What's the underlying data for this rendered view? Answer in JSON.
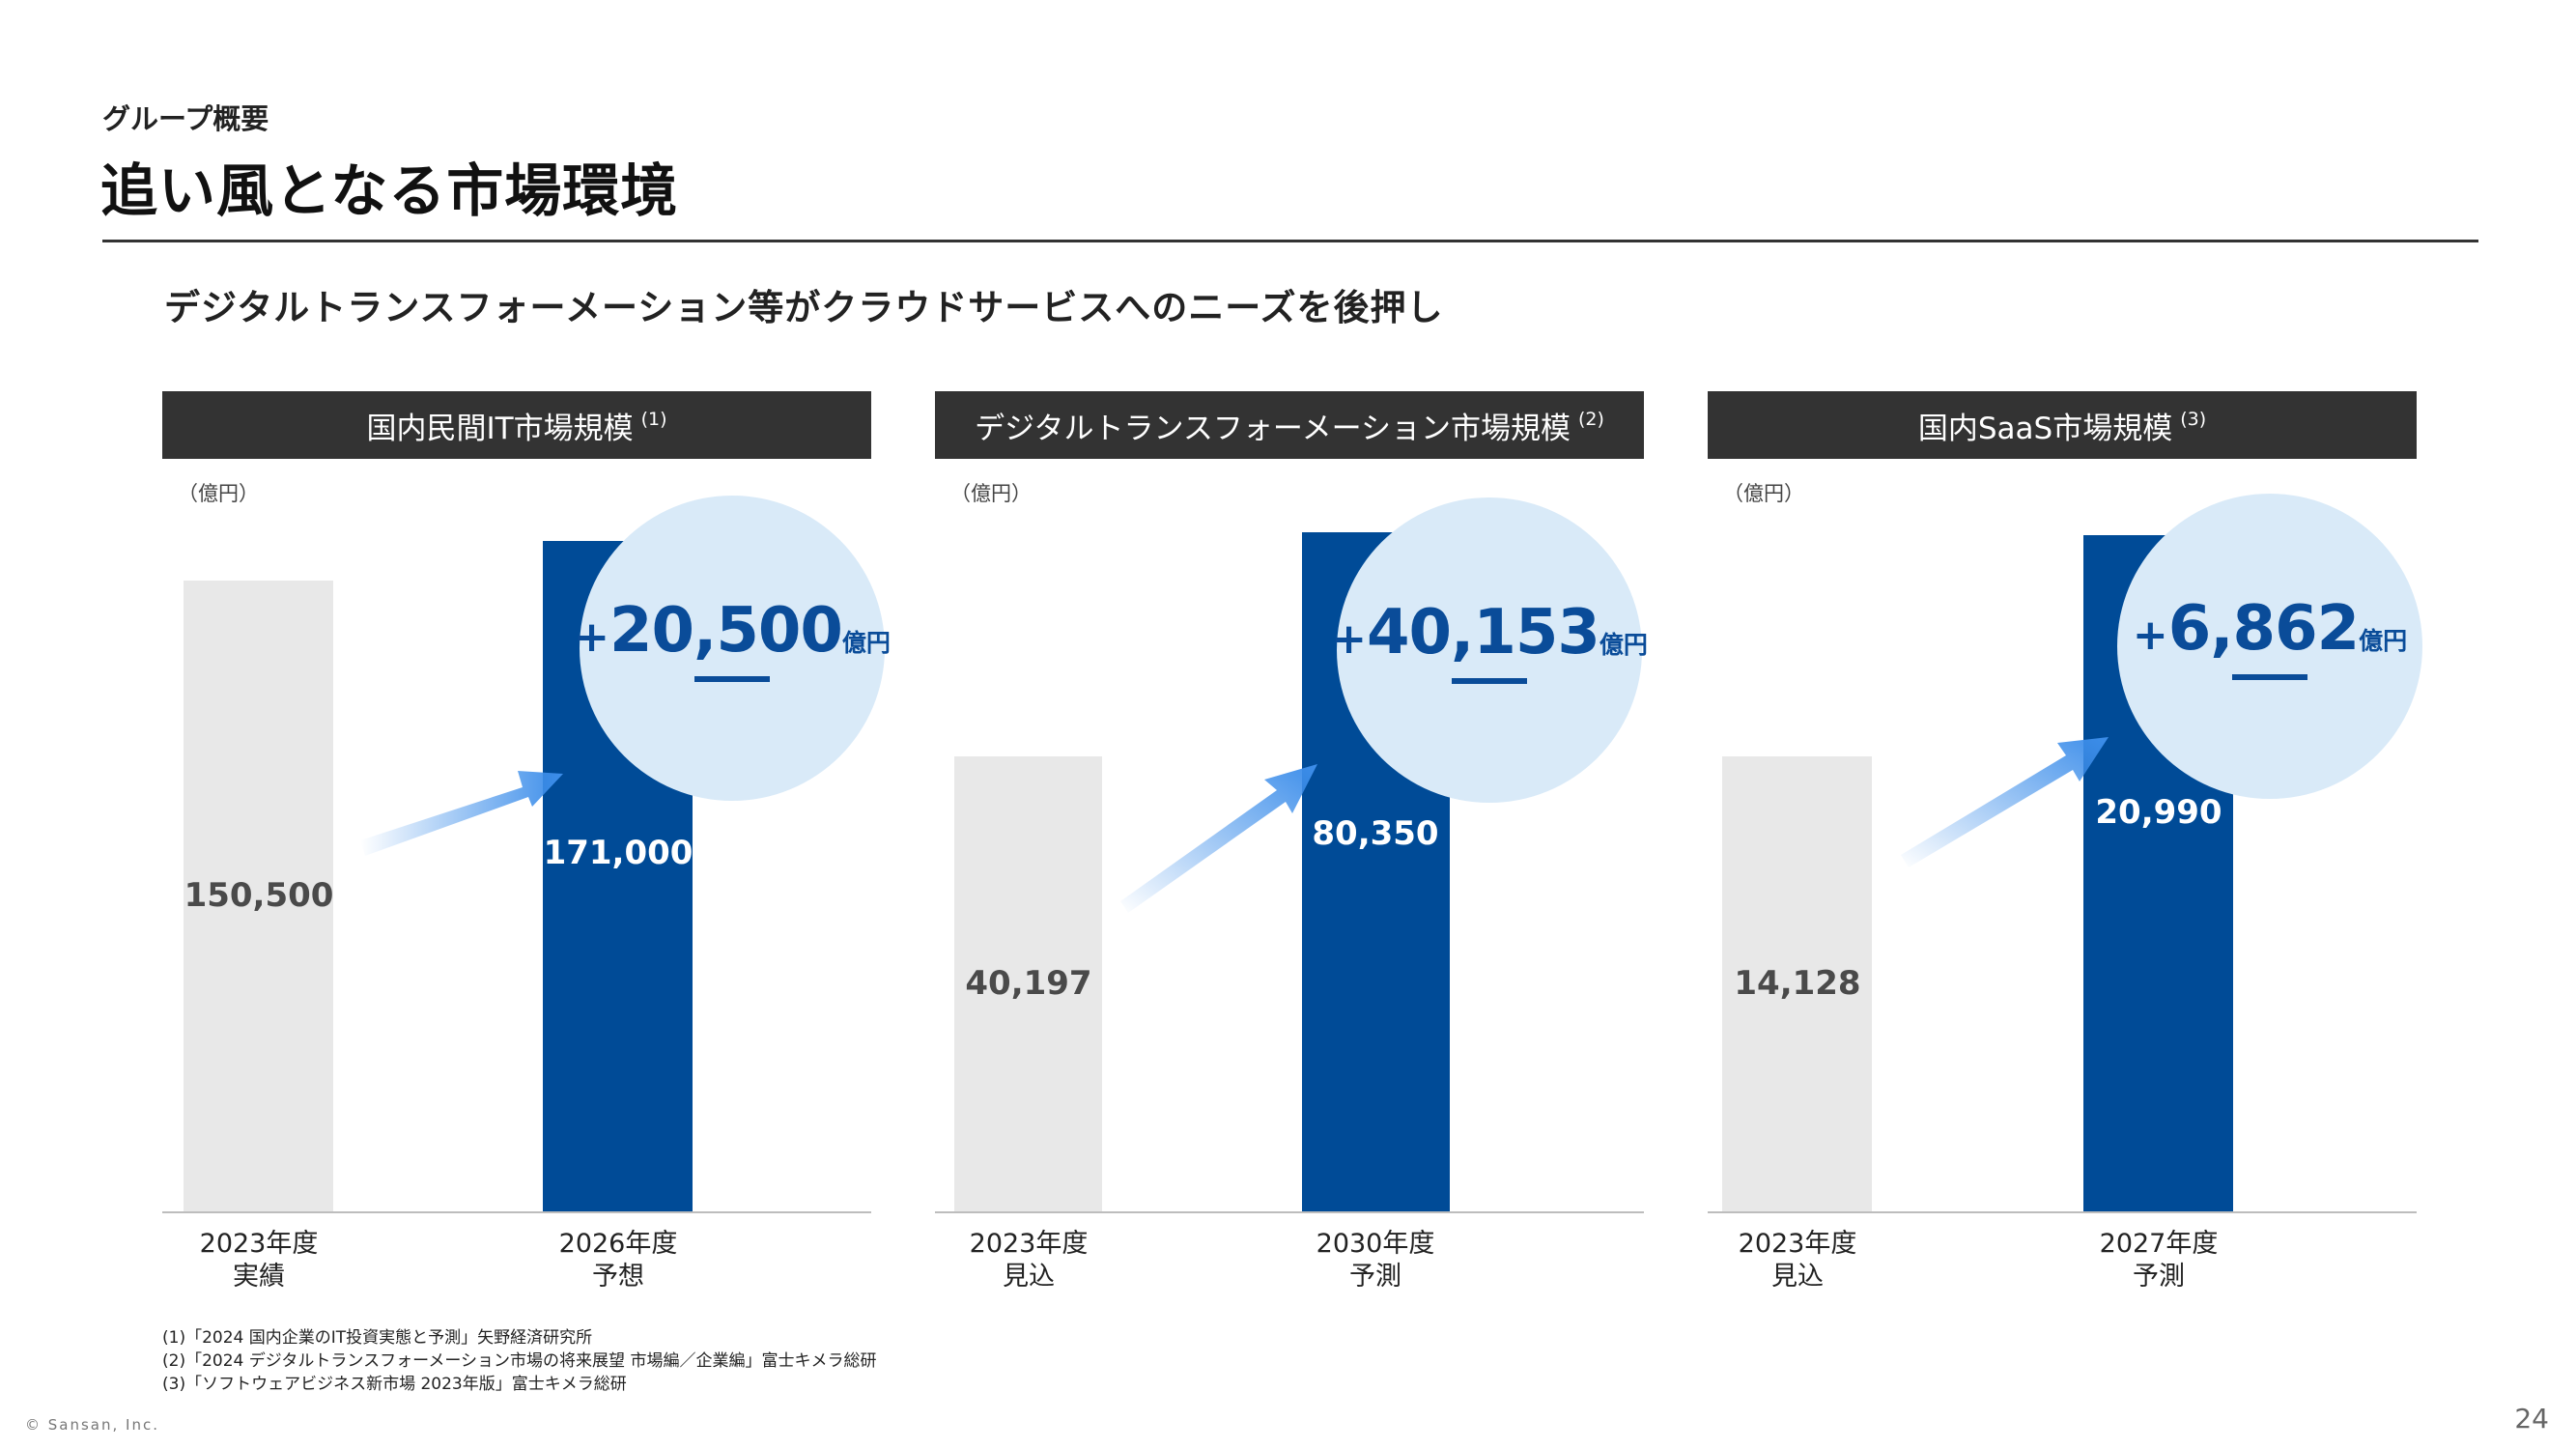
{
  "header": {
    "section_label": "グループ概要",
    "title": "追い風となる市場環境",
    "subtitle": "デジタルトランスフォーメーション等がクラウドサービスへのニーズを後押し"
  },
  "colors": {
    "header_bg": "#333333",
    "bar_gray": "#e8e8e8",
    "bar_blue": "#004b97",
    "bubble_bg": "#d9eaf8",
    "bubble_text": "#0a4c99",
    "arrow": "#3d8eea"
  },
  "chart_data": [
    {
      "type": "bar",
      "title": "国内民間IT市場規模",
      "note_ref": "(1)",
      "unit": "（億円）",
      "categories": [
        [
          "2023年度",
          "実績"
        ],
        [
          "2026年度",
          "予想"
        ]
      ],
      "values": [
        150500,
        171000
      ],
      "value_labels": [
        "150,500",
        "171,000"
      ],
      "increase": {
        "plus": "+",
        "value": "20,500",
        "unit": "億円"
      }
    },
    {
      "type": "bar",
      "title": "デジタルトランスフォーメーション市場規模",
      "note_ref": "(2)",
      "unit": "（億円）",
      "categories": [
        [
          "2023年度",
          "見込"
        ],
        [
          "2030年度",
          "予測"
        ]
      ],
      "values": [
        40197,
        80350
      ],
      "value_labels": [
        "40,197",
        "80,350"
      ],
      "increase": {
        "plus": "+",
        "value": "40,153",
        "unit": "億円"
      }
    },
    {
      "type": "bar",
      "title": "国内SaaS市場規模",
      "note_ref": "(3)",
      "unit": "（億円）",
      "categories": [
        [
          "2023年度",
          "見込"
        ],
        [
          "2027年度",
          "予測"
        ]
      ],
      "values": [
        14128,
        20990
      ],
      "value_labels": [
        "14,128",
        "20,990"
      ],
      "increase": {
        "plus": "+",
        "value": "6,862",
        "unit": "億円"
      }
    }
  ],
  "footnotes": [
    "(1)「2024 国内企業のIT投資実態と予測」矢野経済研究所",
    "(2)「2024 デジタルトランスフォーメーション市場の将来展望 市場編／企業編」富士キメラ総研",
    "(3)「ソフトウェアビジネス新市場 2023年版」富士キメラ総研"
  ],
  "footer": {
    "copyright": "© Sansan, Inc.",
    "page_number": "24"
  }
}
